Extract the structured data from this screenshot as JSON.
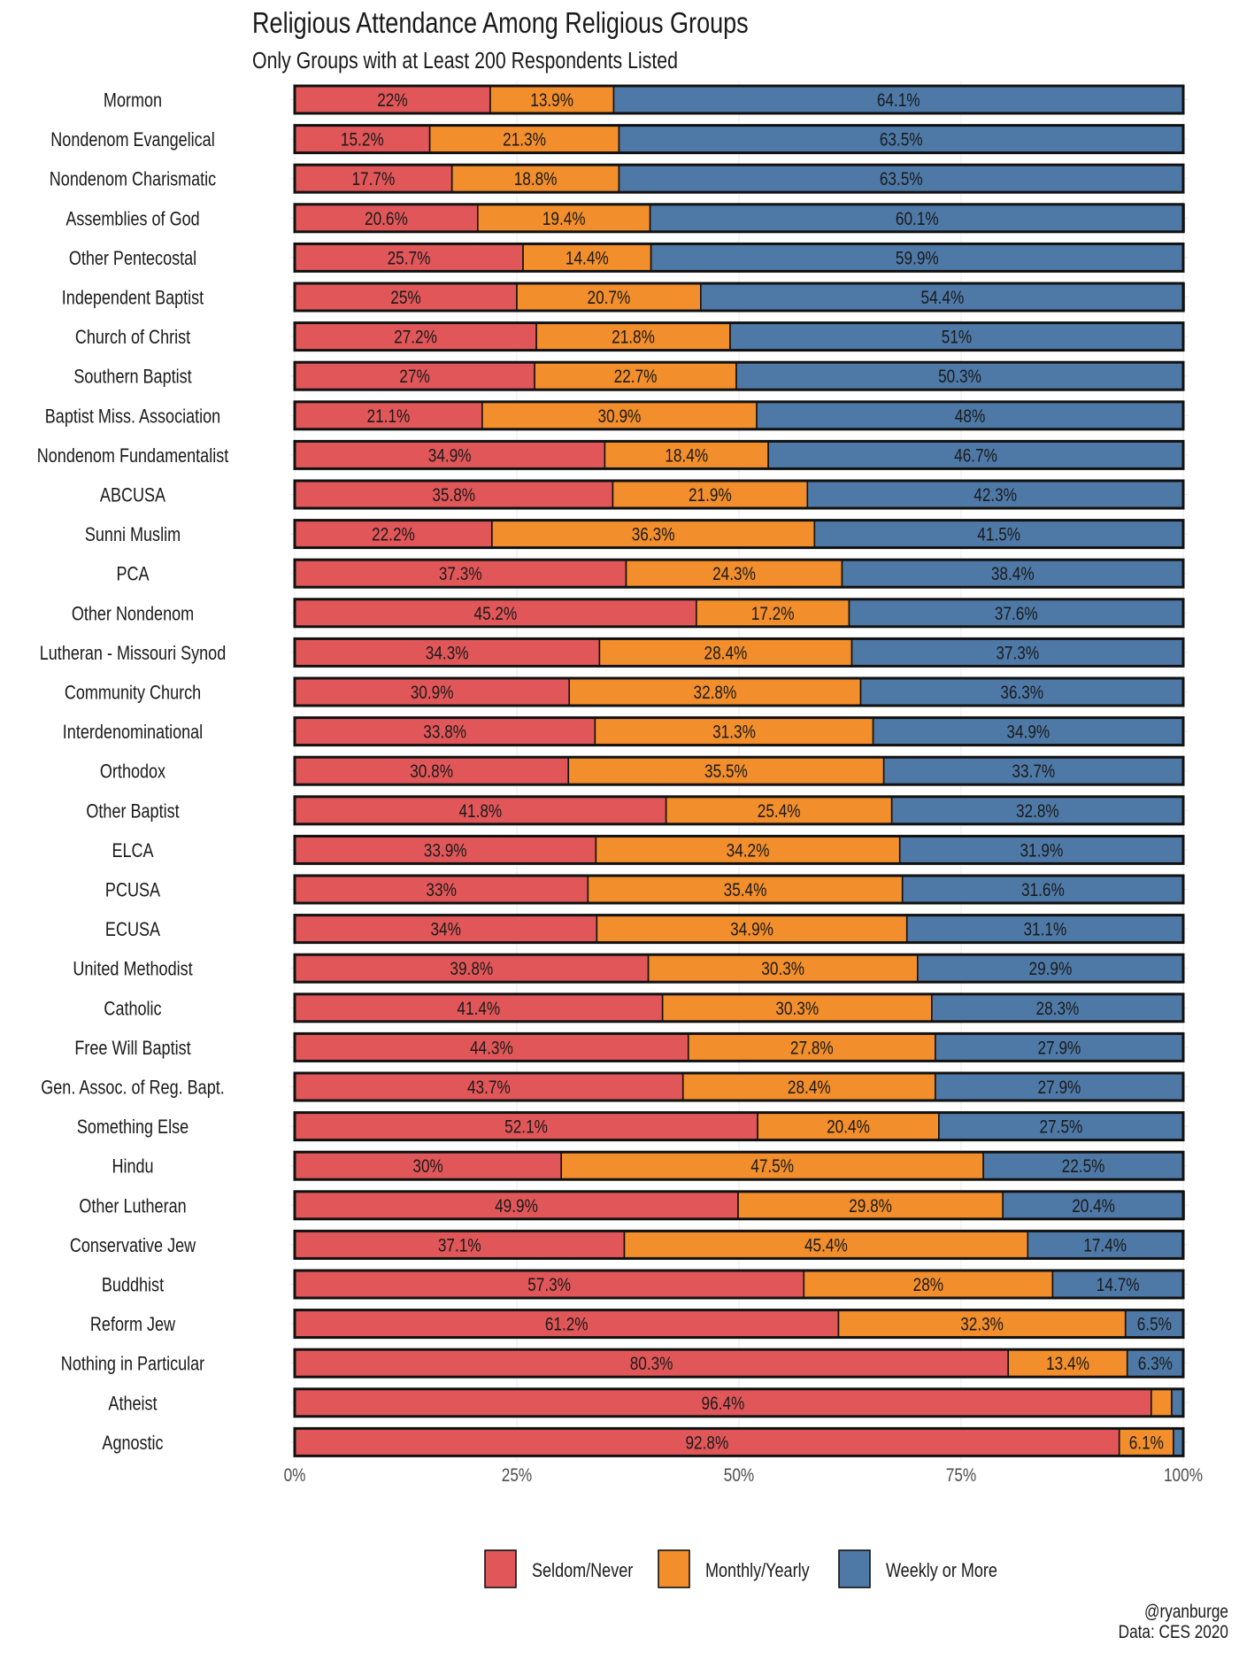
{
  "chart_data": {
    "type": "bar",
    "orientation": "horizontal",
    "stacked": true,
    "title": "Religious Attendance Among Religious Groups",
    "subtitle": "Only Groups with at Least 200 Respondents Listed",
    "xlabel": "",
    "ylabel": "",
    "xlim": [
      0,
      100
    ],
    "x_ticks": [
      "0%",
      "25%",
      "50%",
      "75%",
      "100%"
    ],
    "x_tick_values": [
      0,
      25,
      50,
      75,
      100
    ],
    "grid": true,
    "legend_position": "bottom",
    "categories": [
      "Mormon",
      "Nondenom Evangelical",
      "Nondenom Charismatic",
      "Assemblies of God",
      "Other Pentecostal",
      "Independent Baptist",
      "Church of Christ",
      "Southern Baptist",
      "Baptist Miss. Association",
      "Nondenom Fundamentalist",
      "ABCUSA",
      "Sunni Muslim",
      "PCA",
      "Other Nondenom",
      "Lutheran - Missouri Synod",
      "Community Church",
      "Interdenominational",
      "Orthodox",
      "Other Baptist",
      "ELCA",
      "PCUSA",
      "ECUSA",
      "United Methodist",
      "Catholic",
      "Free Will Baptist",
      "Gen. Assoc. of Reg. Bapt.",
      "Something Else",
      "Hindu",
      "Other Lutheran",
      "Conservative Jew",
      "Buddhist",
      "Reform Jew",
      "Nothing in Particular",
      "Atheist",
      "Agnostic"
    ],
    "series": [
      {
        "name": "Seldom/Never",
        "color": "#E15759",
        "values": [
          22,
          15.2,
          17.7,
          20.6,
          25.7,
          25,
          27.2,
          27,
          21.1,
          34.9,
          35.8,
          22.2,
          37.3,
          45.2,
          34.3,
          30.9,
          33.8,
          30.8,
          41.8,
          33.9,
          33,
          34,
          39.8,
          41.4,
          44.3,
          43.7,
          52.1,
          30,
          49.9,
          37.1,
          57.3,
          61.2,
          80.3,
          96.4,
          92.8
        ],
        "labels": [
          "22%",
          "15.2%",
          "17.7%",
          "20.6%",
          "25.7%",
          "25%",
          "27.2%",
          "27%",
          "21.1%",
          "34.9%",
          "35.8%",
          "22.2%",
          "37.3%",
          "45.2%",
          "34.3%",
          "30.9%",
          "33.8%",
          "30.8%",
          "41.8%",
          "33.9%",
          "33%",
          "34%",
          "39.8%",
          "41.4%",
          "44.3%",
          "43.7%",
          "52.1%",
          "30%",
          "49.9%",
          "37.1%",
          "57.3%",
          "61.2%",
          "80.3%",
          "96.4%",
          "92.8%"
        ]
      },
      {
        "name": "Monthly/Yearly",
        "color": "#F28E2B",
        "values": [
          13.9,
          21.3,
          18.8,
          19.4,
          14.4,
          20.7,
          21.8,
          22.7,
          30.9,
          18.4,
          21.9,
          36.3,
          24.3,
          17.2,
          28.4,
          32.8,
          31.3,
          35.5,
          25.4,
          34.2,
          35.4,
          34.9,
          30.3,
          30.3,
          27.8,
          28.4,
          20.4,
          47.5,
          29.8,
          45.4,
          28,
          32.3,
          13.4,
          2.3,
          6.1
        ],
        "labels": [
          "13.9%",
          "21.3%",
          "18.8%",
          "19.4%",
          "14.4%",
          "20.7%",
          "21.8%",
          "22.7%",
          "30.9%",
          "18.4%",
          "21.9%",
          "36.3%",
          "24.3%",
          "17.2%",
          "28.4%",
          "32.8%",
          "31.3%",
          "35.5%",
          "25.4%",
          "34.2%",
          "35.4%",
          "34.9%",
          "30.3%",
          "30.3%",
          "27.8%",
          "28.4%",
          "20.4%",
          "47.5%",
          "29.8%",
          "45.4%",
          "28%",
          "32.3%",
          "13.4%",
          "",
          "6.1%"
        ]
      },
      {
        "name": "Weekly or More",
        "color": "#4E79A7",
        "values": [
          64.1,
          63.5,
          63.5,
          60.1,
          59.9,
          54.4,
          51,
          50.3,
          48,
          46.7,
          42.3,
          41.5,
          38.4,
          37.6,
          37.3,
          36.3,
          34.9,
          33.7,
          32.8,
          31.9,
          31.6,
          31.1,
          29.9,
          28.3,
          27.9,
          27.9,
          27.5,
          22.5,
          20.4,
          17.4,
          14.7,
          6.5,
          6.3,
          1.3,
          1.1
        ],
        "labels": [
          "64.1%",
          "63.5%",
          "63.5%",
          "60.1%",
          "59.9%",
          "54.4%",
          "51%",
          "50.3%",
          "48%",
          "46.7%",
          "42.3%",
          "41.5%",
          "38.4%",
          "37.6%",
          "37.3%",
          "36.3%",
          "34.9%",
          "33.7%",
          "32.8%",
          "31.9%",
          "31.6%",
          "31.1%",
          "29.9%",
          "28.3%",
          "27.9%",
          "27.9%",
          "27.5%",
          "22.5%",
          "20.4%",
          "17.4%",
          "14.7%",
          "6.5%",
          "6.3%",
          "",
          ""
        ]
      }
    ],
    "caption": [
      "@ryanburge",
      "Data: CES 2020"
    ]
  }
}
